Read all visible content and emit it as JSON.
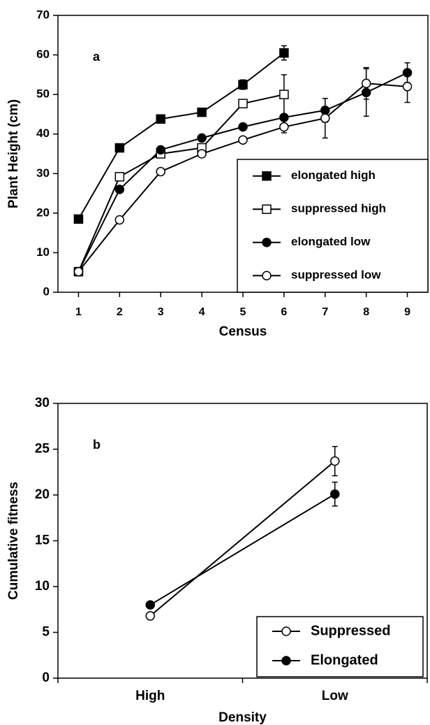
{
  "chart_data": [
    {
      "type": "line",
      "label": "a",
      "xlabel": "Census",
      "ylabel": "Plant Height (cm)",
      "x": [
        1,
        2,
        3,
        4,
        5,
        6,
        7,
        8,
        9
      ],
      "xlim": [
        0.5,
        9.5
      ],
      "xticks": [
        1,
        2,
        3,
        4,
        5,
        6,
        7,
        8,
        9
      ],
      "ylim": [
        0,
        70
      ],
      "yticks": [
        0,
        10,
        20,
        30,
        40,
        50,
        60,
        70
      ],
      "legend": "lower right",
      "series": [
        {
          "name": "elongated high",
          "color": "#000000",
          "marker": "square",
          "filled": true,
          "values": [
            18.5,
            36.5,
            43.8,
            45.5,
            52.5,
            60.5,
            null,
            null,
            null
          ],
          "errors": [
            null,
            null,
            null,
            null,
            1.2,
            1.8,
            null,
            null,
            null
          ]
        },
        {
          "name": "suppressed high",
          "color": "#000000",
          "marker": "square",
          "filled": false,
          "values": [
            5.2,
            29.2,
            35,
            36.5,
            47.7,
            50,
            null,
            null,
            null
          ],
          "errors": [
            null,
            null,
            null,
            null,
            null,
            5,
            null,
            null,
            null
          ]
        },
        {
          "name": "elongated low",
          "color": "#000000",
          "marker": "circle",
          "filled": true,
          "values": [
            5.2,
            26,
            36,
            39,
            41.8,
            44.2,
            46,
            50.5,
            55.5
          ],
          "errors": [
            null,
            null,
            null,
            null,
            null,
            null,
            3,
            6,
            2.5
          ]
        },
        {
          "name": "suppressed low",
          "color": "#000000",
          "marker": "circle",
          "filled": false,
          "values": [
            5.2,
            18.3,
            30.5,
            35,
            38.5,
            41.8,
            44,
            52.8,
            52
          ],
          "errors": [
            null,
            null,
            null,
            null,
            null,
            1.5,
            5,
            4,
            4
          ]
        }
      ]
    },
    {
      "type": "line",
      "label": "b",
      "xlabel": "Density",
      "ylabel": "Cumulative fitness",
      "categories": [
        "High",
        "Low"
      ],
      "ylim": [
        0,
        30
      ],
      "yticks": [
        0,
        5,
        10,
        15,
        20,
        25,
        30
      ],
      "legend": "lower right",
      "series": [
        {
          "name": "Suppressed",
          "color": "#000000",
          "marker": "circle",
          "filled": false,
          "values": [
            6.8,
            23.7
          ],
          "errors": [
            null,
            1.6
          ]
        },
        {
          "name": "Elongated",
          "color": "#000000",
          "marker": "circle",
          "filled": true,
          "values": [
            8,
            20.1
          ],
          "errors": [
            null,
            1.3
          ]
        }
      ]
    }
  ]
}
